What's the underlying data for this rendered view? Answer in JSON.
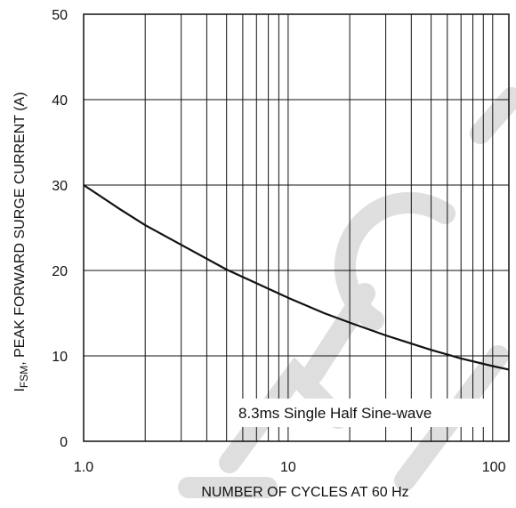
{
  "chart_data": {
    "type": "line",
    "xlabel": "NUMBER OF CYCLES AT 60 Hz",
    "ylabel_main": "I",
    "ylabel_sub": "FSM",
    "ylabel_rest": ", PEAK FORWARD SURGE CURRENT (A)",
    "x_scale": "log",
    "xlim": [
      1,
      120
    ],
    "ylim": [
      0,
      50
    ],
    "x_ticks": [
      {
        "value": 1,
        "label": "1.0"
      },
      {
        "value": 10,
        "label": "10"
      },
      {
        "value": 100,
        "label": "100"
      }
    ],
    "y_ticks": [
      {
        "value": 0,
        "label": "0"
      },
      {
        "value": 10,
        "label": "10"
      },
      {
        "value": 20,
        "label": "20"
      },
      {
        "value": 30,
        "label": "30"
      },
      {
        "value": 40,
        "label": "40"
      },
      {
        "value": 50,
        "label": "50"
      }
    ],
    "grid": true,
    "series": [
      {
        "x": [
          1,
          1.5,
          2,
          3,
          5,
          7,
          10,
          15,
          20,
          30,
          50,
          70,
          100,
          120
        ],
        "y": [
          30,
          27.2,
          25.3,
          23.0,
          20.1,
          18.5,
          16.8,
          15.0,
          13.9,
          12.4,
          10.7,
          9.7,
          8.8,
          8.4
        ]
      }
    ],
    "annotation": "8.3ms Single Half Sine-wave",
    "colors": {
      "line": "#111111",
      "grid": "#111111",
      "watermark": "#d9d9d9"
    }
  }
}
